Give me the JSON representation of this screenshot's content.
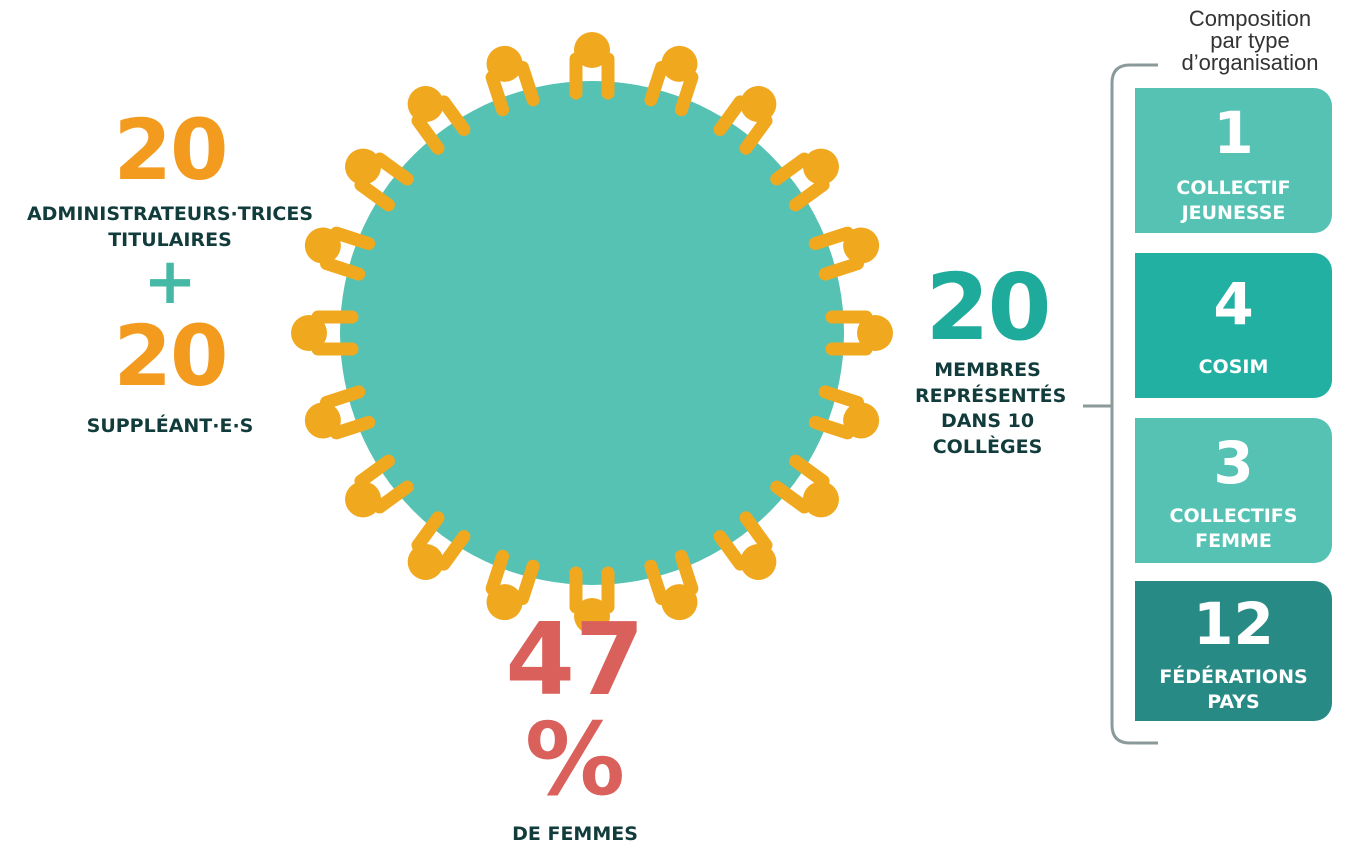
{
  "administrators": {
    "titular_count": "20",
    "titular_label_line1": "ADMINISTRATEURS·TRICES",
    "titular_label_line2": "TITULAIRES",
    "plus_sign": "+",
    "substitute_count": "20",
    "substitute_label": "SUPPLÉANT·E·S"
  },
  "members": {
    "count": "20",
    "label_lines": [
      "MEMBRES",
      "REPRÉSENTÉS",
      "DANS 10",
      "COLLÈGES"
    ]
  },
  "women": {
    "percent": "47 %",
    "label": "DE FEMMES"
  },
  "composition": {
    "title_lines": [
      "Composition",
      "par type",
      "d’organisation"
    ],
    "cards": [
      {
        "number": "1",
        "caption_lines": [
          "COLLECTIF",
          "JEUNESSE"
        ],
        "color": "#56c2b4"
      },
      {
        "number": "4",
        "caption_lines": [
          "COSIM"
        ],
        "color": "#21b0a2"
      },
      {
        "number": "3",
        "caption_lines": [
          "COLLECTIFS",
          "FEMME"
        ],
        "color": "#56c2b4"
      },
      {
        "number": "12",
        "caption_lines": [
          "FÉDÉRATIONS",
          "PAYS"
        ],
        "color": "#278a85"
      }
    ]
  },
  "colors": {
    "table": "#56c2b4",
    "person": "#f0a81e",
    "admin_numbers": "#f39b1f",
    "member_number": "#1fab9b",
    "women_percent": "#d9605b",
    "dark_text": "#123c3c",
    "connector": "#8a9a9a"
  },
  "seated_people_count": 20
}
